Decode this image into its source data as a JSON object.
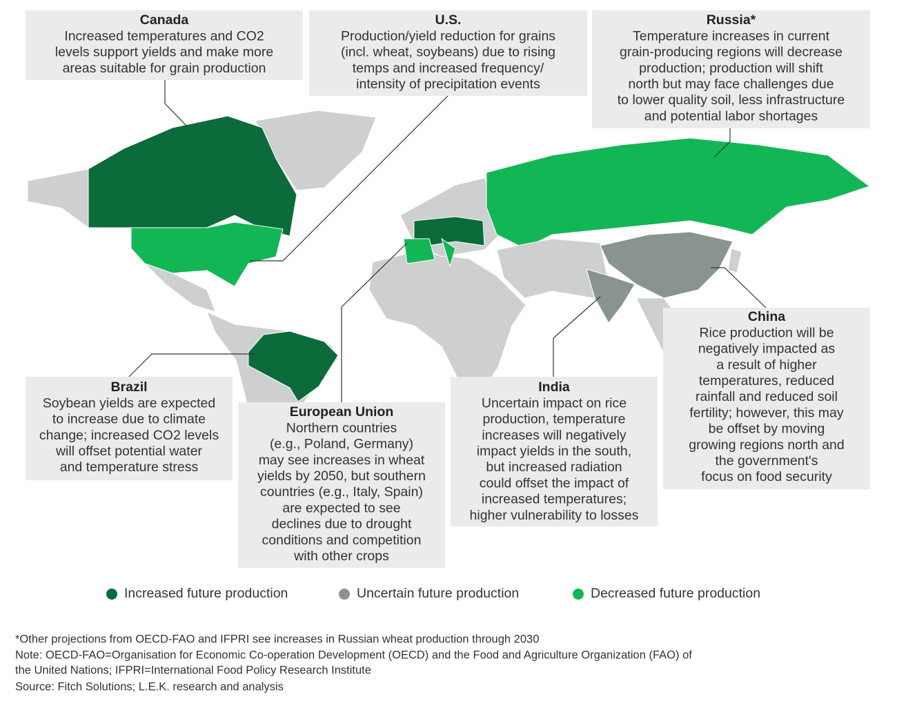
{
  "callouts": [
    {
      "title": "Canada",
      "lines": [
        "Increased temperatures and CO2",
        "levels support yields and make more",
        "areas suitable for grain production"
      ]
    },
    {
      "title": "U.S.",
      "lines": [
        "Production/yield reduction for grains",
        "(incl. wheat, soybeans) due to rising",
        "temps and increased frequency/",
        "intensity of precipitation events"
      ]
    },
    {
      "title": "Russia*",
      "lines": [
        "Temperature increases in current",
        "grain-producing regions will decrease",
        "production; production will shift",
        "north but may face challenges due",
        "to lower quality soil, less infrastructure",
        "and potential labor shortages"
      ]
    },
    {
      "title": "Brazil",
      "lines": [
        "Soybean yields are expected",
        "to increase due to climate",
        "change; increased CO2 levels",
        "will offset potential water",
        "and temperature stress"
      ]
    },
    {
      "title": "European Union",
      "lines": [
        "Northern countries",
        "(e.g., Poland, Germany)",
        "may see increases in wheat",
        "yields by 2050, but southern",
        "countries (e.g., Italy, Spain)",
        "are expected to see",
        "declines due to drought",
        "conditions and competition",
        "with other crops"
      ]
    },
    {
      "title": "India",
      "lines": [
        "Uncertain impact on rice",
        "production, temperature",
        "increases will negatively",
        "impact yields in the south,",
        "but increased radiation",
        "could offset the impact of",
        "increased temperatures;",
        "higher vulnerability to losses"
      ]
    },
    {
      "title": "China",
      "lines": [
        "Rice production will be",
        "negatively impacted as",
        "a result of higher",
        "temperatures, reduced",
        "rainfall and reduced soil",
        "fertility; however, this may",
        "be offset by moving",
        "growing regions north and",
        "the government's",
        "focus on food security"
      ]
    }
  ],
  "legend": {
    "items": [
      {
        "label": "Increased future production",
        "color": "#0b6b3a"
      },
      {
        "label": "Uncertain future production",
        "color": "#8a948e"
      },
      {
        "label": "Decreased future production",
        "color": "#13b655"
      }
    ]
  },
  "footnotes": [
    "*Other projections from OECD-FAO and IFPRI see increases in Russian wheat production through 2030",
    "Note: OECD-FAO=Organisation for Economic Co-operation Development (OECD) and the Food and Agriculture Organization (FAO) of",
    "the United Nations; IFPRI=International Food Policy Research Institute",
    "Source: Fitch Solutions; L.E.K. research and analysis"
  ]
}
